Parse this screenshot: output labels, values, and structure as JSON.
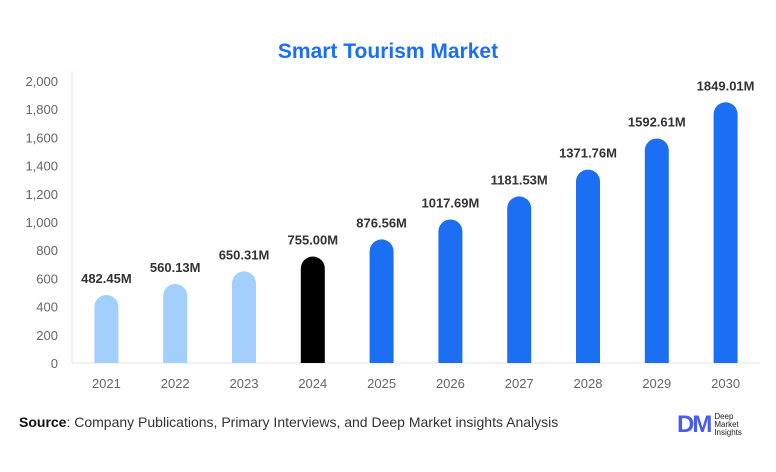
{
  "chart_data": {
    "type": "bar",
    "title": "Smart Tourism Market",
    "categories": [
      "2021",
      "2022",
      "2023",
      "2024",
      "2025",
      "2026",
      "2027",
      "2028",
      "2029",
      "2030"
    ],
    "values": [
      482.45,
      560.13,
      650.31,
      755.0,
      876.56,
      1017.69,
      1181.53,
      1371.76,
      1592.61,
      1849.01
    ],
    "data_labels": [
      "482.45M",
      "560.13M",
      "650.31M",
      "755.00M",
      "876.56M",
      "1017.69M",
      "1181.53M",
      "1371.76M",
      "1592.61M",
      "1849.01M"
    ],
    "bar_colors": [
      "#a3cffc",
      "#a3cffc",
      "#a3cffc",
      "#000000",
      "#1a6ff2",
      "#1a6ff2",
      "#1a6ff2",
      "#1a6ff2",
      "#1a6ff2",
      "#1a6ff2"
    ],
    "ylim": [
      0,
      2000
    ],
    "yticks": [
      "0",
      "200",
      "400",
      "600",
      "800",
      "1,000",
      "1,200",
      "1,400",
      "1,600",
      "1,800",
      "2,000"
    ],
    "grid": false,
    "xlabel": "",
    "ylabel": ""
  },
  "source": {
    "label": "Source",
    "text": ": Company Publications, Primary Interviews, and Deep Market insights Analysis"
  },
  "logo": {
    "mark": "DM",
    "lines": [
      "Deep",
      "Market",
      "Insights"
    ]
  }
}
